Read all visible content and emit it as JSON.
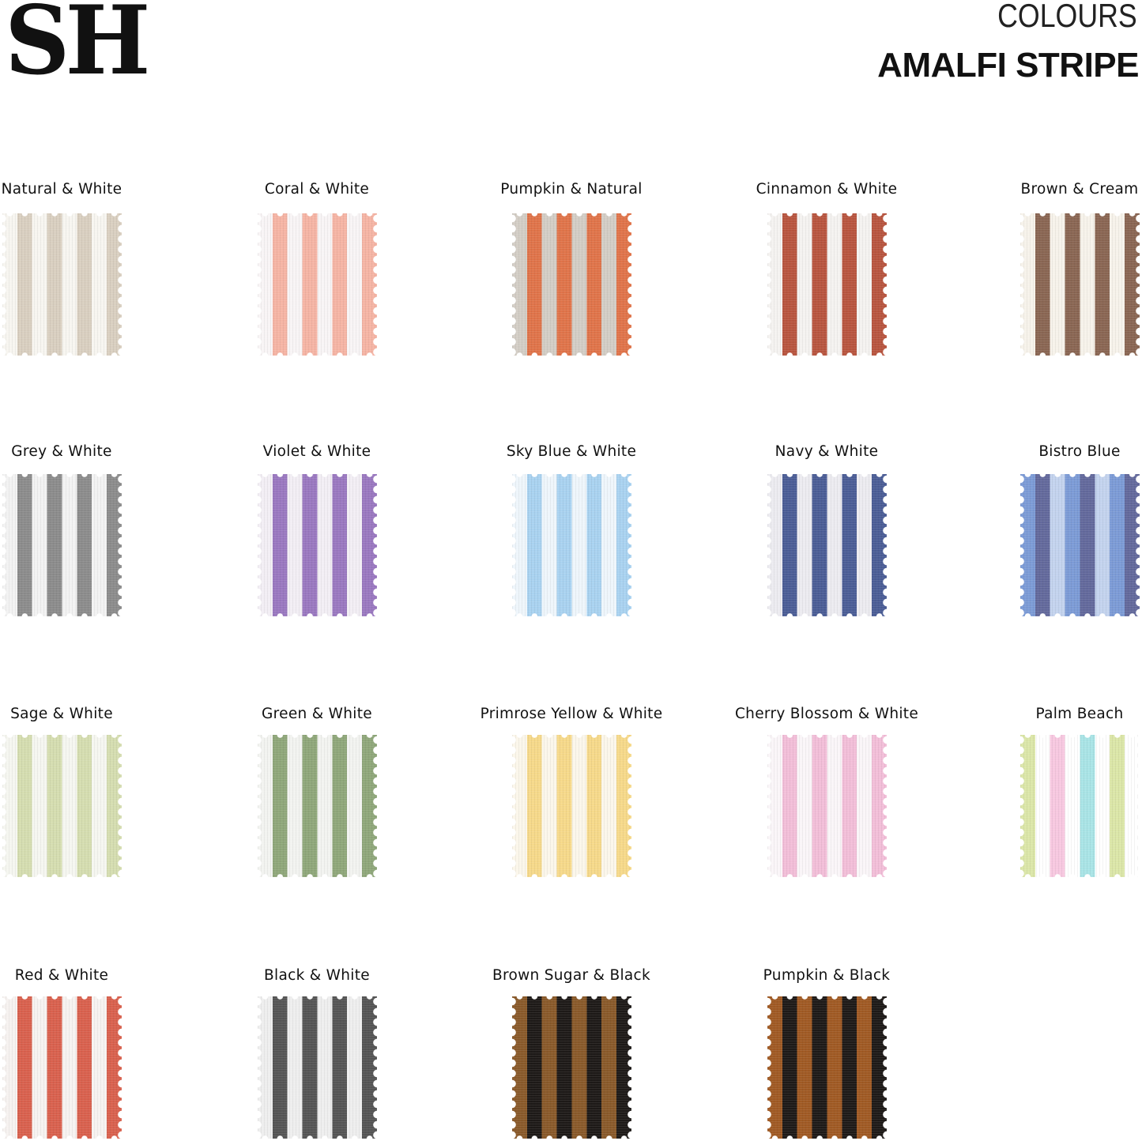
{
  "brand": {
    "logo": "SH"
  },
  "header": {
    "subtitle": "COLOURS",
    "title": "AMALFI STRIPE"
  },
  "swatches": [
    {
      "name": "Natural & White",
      "colors": [
        "#f7f5f0",
        "#d9cfc0"
      ]
    },
    {
      "name": "Coral & White",
      "colors": [
        "#f8f4f5",
        "#f5b4a4"
      ]
    },
    {
      "name": "Pumpkin & Natural",
      "colors": [
        "#d3cdc5",
        "#e0744a"
      ]
    },
    {
      "name": "Cinnamon & White",
      "colors": [
        "#f4f2f0",
        "#b8553f"
      ]
    },
    {
      "name": "Brown & Cream",
      "colors": [
        "#f6f2ea",
        "#8a6653"
      ]
    },
    {
      "name": "Grey & White",
      "colors": [
        "#f2f2f2",
        "#8c8c8c"
      ]
    },
    {
      "name": "Violet & White",
      "colors": [
        "#f2eef4",
        "#9a78c0"
      ]
    },
    {
      "name": "Sky Blue & White",
      "colors": [
        "#eef5fb",
        "#a9d2f0"
      ]
    },
    {
      "name": "Navy & White",
      "colors": [
        "#ecebf0",
        "#4b5d96"
      ]
    },
    {
      "name": "Bistro Blue",
      "colors": [
        "#7c9bd6",
        "#63699c",
        "#c3d3ee"
      ]
    },
    {
      "name": "Sage & White",
      "colors": [
        "#f5f6f0",
        "#d5ddb0"
      ]
    },
    {
      "name": "Green & White",
      "colors": [
        "#f2f3f0",
        "#8fa77a"
      ]
    },
    {
      "name": "Primrose Yellow & White",
      "colors": [
        "#fbf6ea",
        "#f6d98a"
      ]
    },
    {
      "name": "Cherry Blossom & White",
      "colors": [
        "#faf5f8",
        "#f2bed8"
      ]
    },
    {
      "name": "Palm Beach",
      "colors": [
        "#dbe6a8",
        "#ffffff",
        "#f7c8e0",
        "#ffffff",
        "#a9e4e6",
        "#ffffff"
      ]
    },
    {
      "name": "Red & White",
      "colors": [
        "#f6f2f0",
        "#d9614e"
      ]
    },
    {
      "name": "Black & White",
      "colors": [
        "#eeeeee",
        "#555555"
      ]
    },
    {
      "name": "Brown Sugar & Black",
      "colors": [
        "#8a5a2a",
        "#1e1a18"
      ]
    },
    {
      "name": "Pumpkin & Black",
      "colors": [
        "#a05a24",
        "#1e1a18"
      ]
    }
  ]
}
